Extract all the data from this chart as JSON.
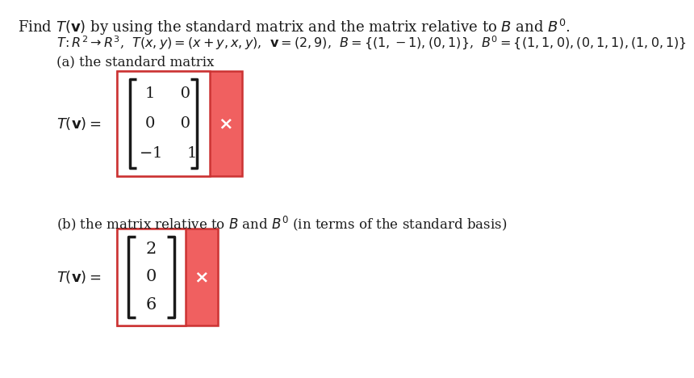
{
  "title": "Find $T(\\mathbf{v})$ by using the standard matrix and the matrix relative to $B$ and $B^{\\prime}$.",
  "def_line": "$T: R^2 \\rightarrow R^3$,  $T(x, y) = (x+y, x, y)$,  $\\mathbf{v} = (2, 9)$,  $B = \\{(1, -1), (0, 1)\\}$,  $B^{\\prime} = \\{(1, 1, 0), (0, 1, 1), (1, 0, 1)\\}$",
  "label_a": "(a) the standard matrix",
  "label_b": "(b) the matrix relative to $B$ and $B^{\\prime}$ (in terms of the standard basis)",
  "tv_label": "$T(\\mathbf{v}) =$",
  "matrix_a_row1": "1     0",
  "matrix_a_row2": "0     0",
  "matrix_a_row3": "$-$1     1",
  "matrix_b_row1": "2",
  "matrix_b_row2": "0",
  "matrix_b_row3": "6",
  "box_color": "#f06060",
  "box_edge_color": "#cc3333",
  "white_color": "#ffffff",
  "text_color": "#1a1a1a",
  "bg_color": "#ffffff",
  "x_mark_color": "#ffffff"
}
